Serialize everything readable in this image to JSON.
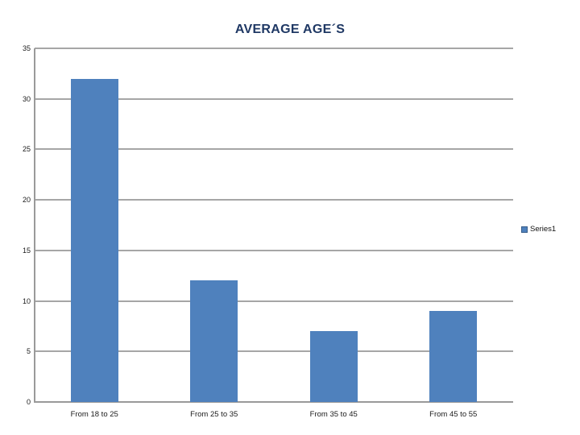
{
  "page": {
    "background": "#ffffff"
  },
  "chart_data": {
    "type": "bar",
    "title": "AVERAGE AGE´S",
    "categories": [
      "From 18 to 25",
      "From 25 to 35",
      "From 35 to 45",
      "From 45 to 55"
    ],
    "series": [
      {
        "name": "Series1",
        "values": [
          32,
          12,
          7,
          9
        ]
      }
    ],
    "xlabel": "",
    "ylabel": "",
    "ylim": [
      0,
      35
    ],
    "yticks": [
      0,
      5,
      10,
      15,
      20,
      25,
      30,
      35
    ],
    "grid": true,
    "legend_position": "right",
    "colors": {
      "bar": "#4f81bd",
      "bar_border": "#385d8a",
      "gridline": "#a6a6a6",
      "axis": "#9a9a9a",
      "title": "#1f3864",
      "tick_label": "#1a1a1a"
    }
  },
  "legend": {
    "label": "Series1"
  }
}
